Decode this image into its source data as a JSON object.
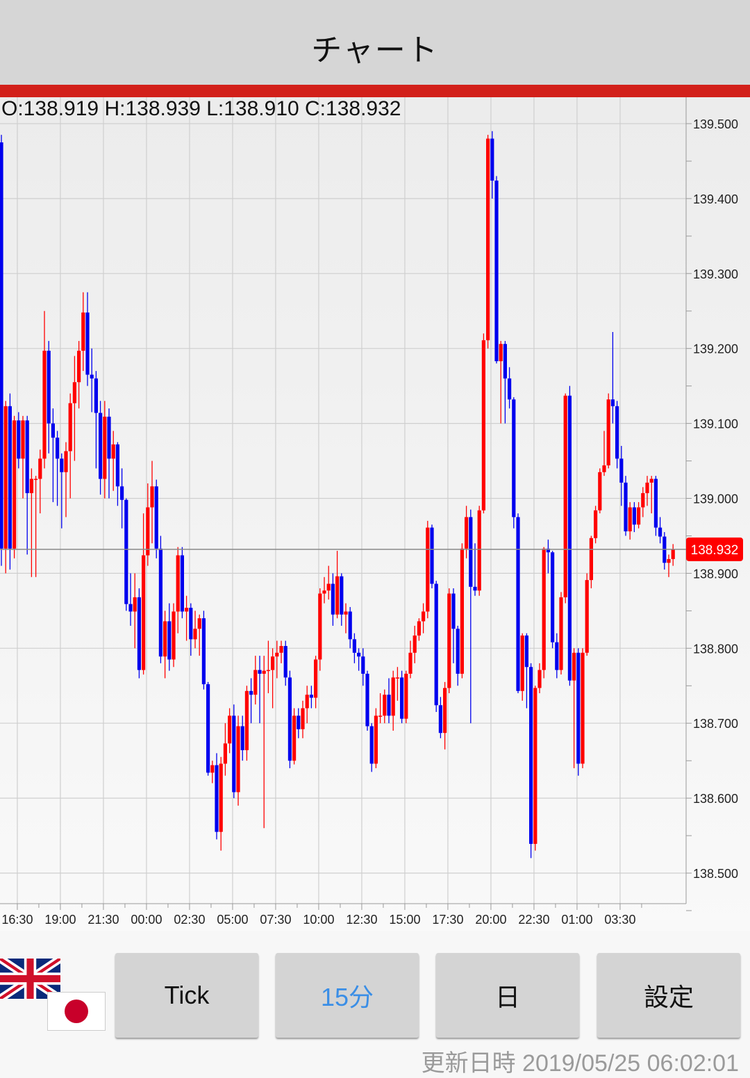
{
  "header": {
    "title": "チャート"
  },
  "ohlc_readout": "O:138.919 H:138.939 L:138.910 C:138.932",
  "colors": {
    "up": "#ff0000",
    "down": "#0000ee",
    "accent_bar": "#d2201a",
    "current_price_box": "#ff0000",
    "active_button_text": "#3a8ee6"
  },
  "buttons": [
    {
      "label": "Tick",
      "active": false
    },
    {
      "label": "15分",
      "active": true
    },
    {
      "label": "日",
      "active": false
    },
    {
      "label": "設定",
      "active": false
    }
  ],
  "flags": {
    "base": "uk-flag-icon",
    "quote": "japan-flag-icon"
  },
  "updated": "更新日時  2019/05/25 06:02:01",
  "chart_data": {
    "type": "candlestick",
    "interval": "15分",
    "ylim": [
      138.45,
      139.535
    ],
    "y_ticks": [
      "139.500",
      "139.400",
      "139.300",
      "139.200",
      "139.100",
      "139.000",
      "138.900",
      "138.800",
      "138.700",
      "138.600",
      "138.500"
    ],
    "x_ticks": [
      "16:30",
      "19:00",
      "21:30",
      "00:00",
      "02:30",
      "05:00",
      "07:30",
      "10:00",
      "12:30",
      "15:00",
      "17:30",
      "20:00",
      "22:30",
      "01:00",
      "03:30"
    ],
    "current_price": 138.932,
    "current_price_label": "138.932",
    "grid": true,
    "ohlc_format": "[open, high, low, close]",
    "candles": [
      [
        139.475,
        139.485,
        138.91,
        138.933
      ],
      [
        138.933,
        139.13,
        138.9,
        139.123
      ],
      [
        139.123,
        139.14,
        138.905,
        138.933
      ],
      [
        138.933,
        139.11,
        138.92,
        139.104
      ],
      [
        139.104,
        139.115,
        139.04,
        139.053
      ],
      [
        139.053,
        139.11,
        139.0,
        139.104
      ],
      [
        139.104,
        139.11,
        138.925,
        139.007
      ],
      [
        139.007,
        139.04,
        138.895,
        139.026
      ],
      [
        139.026,
        139.03,
        138.895,
        139.026
      ],
      [
        139.026,
        139.065,
        138.98,
        139.053
      ],
      [
        139.053,
        139.25,
        139.04,
        139.197
      ],
      [
        139.197,
        139.21,
        139.06,
        139.1
      ],
      [
        139.1,
        139.12,
        138.995,
        139.081
      ],
      [
        139.081,
        139.09,
        138.99,
        139.053
      ],
      [
        139.053,
        139.06,
        138.96,
        139.035
      ],
      [
        139.035,
        139.075,
        138.975,
        139.063
      ],
      [
        139.063,
        139.14,
        139.0,
        139.127
      ],
      [
        139.127,
        139.19,
        139.05,
        139.155
      ],
      [
        139.155,
        139.21,
        139.12,
        139.197
      ],
      [
        139.197,
        139.275,
        139.17,
        139.248
      ],
      [
        139.248,
        139.275,
        139.15,
        139.165
      ],
      [
        139.165,
        139.2,
        139.115,
        139.16
      ],
      [
        139.16,
        139.17,
        139.04,
        139.114
      ],
      [
        139.114,
        139.13,
        139.005,
        139.026
      ],
      [
        139.026,
        139.13,
        139.0,
        139.109
      ],
      [
        139.109,
        139.12,
        139.0,
        139.053
      ],
      [
        139.053,
        139.09,
        139.01,
        139.072
      ],
      [
        139.072,
        139.075,
        138.99,
        139.016
      ],
      [
        139.016,
        139.04,
        138.96,
        138.998
      ],
      [
        138.998,
        139.0,
        138.85,
        138.859
      ],
      [
        138.859,
        138.9,
        138.83,
        138.849
      ],
      [
        138.849,
        138.9,
        138.8,
        138.868
      ],
      [
        138.868,
        138.88,
        138.76,
        138.771
      ],
      [
        138.771,
        138.98,
        138.765,
        138.924
      ],
      [
        138.924,
        139.02,
        138.91,
        138.988
      ],
      [
        138.988,
        139.05,
        138.94,
        139.016
      ],
      [
        139.016,
        139.025,
        138.92,
        138.933
      ],
      [
        138.933,
        138.95,
        138.78,
        138.789
      ],
      [
        138.789,
        138.85,
        138.76,
        138.836
      ],
      [
        138.836,
        138.86,
        138.77,
        138.785
      ],
      [
        138.785,
        138.86,
        138.775,
        138.849
      ],
      [
        138.849,
        138.935,
        138.82,
        138.924
      ],
      [
        138.924,
        138.935,
        138.84,
        138.849
      ],
      [
        138.849,
        138.87,
        138.81,
        138.854
      ],
      [
        138.854,
        138.86,
        138.79,
        138.812
      ],
      [
        138.812,
        138.85,
        138.8,
        138.826
      ],
      [
        138.826,
        138.845,
        138.79,
        138.84
      ],
      [
        138.84,
        138.85,
        138.745,
        138.752
      ],
      [
        138.752,
        138.755,
        138.63,
        138.634
      ],
      [
        138.634,
        138.65,
        138.62,
        138.644
      ],
      [
        138.644,
        138.66,
        138.545,
        138.555
      ],
      [
        138.555,
        138.655,
        138.53,
        138.646
      ],
      [
        138.646,
        138.7,
        138.63,
        138.673
      ],
      [
        138.673,
        138.72,
        138.66,
        138.71
      ],
      [
        138.71,
        138.725,
        138.6,
        138.608
      ],
      [
        138.608,
        138.71,
        138.59,
        138.696
      ],
      [
        138.696,
        138.71,
        138.65,
        138.664
      ],
      [
        138.664,
        138.75,
        138.65,
        138.743
      ],
      [
        138.743,
        138.76,
        138.7,
        138.738
      ],
      [
        138.738,
        138.79,
        138.725,
        138.771
      ],
      [
        138.771,
        138.79,
        138.7,
        138.766
      ],
      [
        138.766,
        138.79,
        138.56,
        138.77
      ],
      [
        138.77,
        138.81,
        138.74,
        138.771
      ],
      [
        138.771,
        138.8,
        138.72,
        138.789
      ],
      [
        138.789,
        138.81,
        138.76,
        138.794
      ],
      [
        138.794,
        138.81,
        138.78,
        138.803
      ],
      [
        138.803,
        138.81,
        138.75,
        138.761
      ],
      [
        138.761,
        138.77,
        138.64,
        138.65
      ],
      [
        138.65,
        138.72,
        138.645,
        138.71
      ],
      [
        138.71,
        138.72,
        138.68,
        138.692
      ],
      [
        138.692,
        138.73,
        138.68,
        138.72
      ],
      [
        138.72,
        138.75,
        138.7,
        138.738
      ],
      [
        138.738,
        138.75,
        138.72,
        138.734
      ],
      [
        138.734,
        138.79,
        138.72,
        138.785
      ],
      [
        138.785,
        138.88,
        138.77,
        138.873
      ],
      [
        138.873,
        138.895,
        138.86,
        138.877
      ],
      [
        138.877,
        138.91,
        138.865,
        138.886
      ],
      [
        138.886,
        138.9,
        138.83,
        138.845
      ],
      [
        138.845,
        138.93,
        138.84,
        138.896
      ],
      [
        138.896,
        138.9,
        138.83,
        138.845
      ],
      [
        138.845,
        138.86,
        138.82,
        138.849
      ],
      [
        138.849,
        138.855,
        138.8,
        138.812
      ],
      [
        138.812,
        138.82,
        138.78,
        138.794
      ],
      [
        138.794,
        138.8,
        138.77,
        138.789
      ],
      [
        138.789,
        138.8,
        138.75,
        138.766
      ],
      [
        138.766,
        138.77,
        138.69,
        138.696
      ],
      [
        138.696,
        138.7,
        138.635,
        138.646
      ],
      [
        138.646,
        138.72,
        138.64,
        138.71
      ],
      [
        138.71,
        138.74,
        138.7,
        138.71
      ],
      [
        138.71,
        138.745,
        138.7,
        138.738
      ],
      [
        138.738,
        138.76,
        138.7,
        138.71
      ],
      [
        138.71,
        138.77,
        138.69,
        138.761
      ],
      [
        138.761,
        138.775,
        138.73,
        138.761
      ],
      [
        138.761,
        138.77,
        138.7,
        138.706
      ],
      [
        138.706,
        138.77,
        138.7,
        138.766
      ],
      [
        138.766,
        138.81,
        138.76,
        138.794
      ],
      [
        138.794,
        138.83,
        138.78,
        138.817
      ],
      [
        138.817,
        138.84,
        138.81,
        138.836
      ],
      [
        138.836,
        138.86,
        138.82,
        138.849
      ],
      [
        138.849,
        138.97,
        138.84,
        138.961
      ],
      [
        138.961,
        138.965,
        138.88,
        138.886
      ],
      [
        138.886,
        138.89,
        138.715,
        138.724
      ],
      [
        138.724,
        138.735,
        138.68,
        138.687
      ],
      [
        138.687,
        138.755,
        138.665,
        138.747
      ],
      [
        138.747,
        138.88,
        138.74,
        138.873
      ],
      [
        138.873,
        138.88,
        138.78,
        138.826
      ],
      [
        138.826,
        138.83,
        138.75,
        138.766
      ],
      [
        138.766,
        138.94,
        138.76,
        138.933
      ],
      [
        138.933,
        138.99,
        138.92,
        138.975
      ],
      [
        138.975,
        138.985,
        138.7,
        138.882
      ],
      [
        138.882,
        138.94,
        138.87,
        138.877
      ],
      [
        138.877,
        138.99,
        138.87,
        138.984
      ],
      [
        138.984,
        139.22,
        138.98,
        139.211
      ],
      [
        139.211,
        139.485,
        139.2,
        139.48
      ],
      [
        139.48,
        139.49,
        139.4,
        139.424
      ],
      [
        139.424,
        139.43,
        139.18,
        139.183
      ],
      [
        139.183,
        139.21,
        139.1,
        139.206
      ],
      [
        139.206,
        139.21,
        139.1,
        139.16
      ],
      [
        139.16,
        139.175,
        139.12,
        139.132
      ],
      [
        139.132,
        139.135,
        138.96,
        138.975
      ],
      [
        138.975,
        138.98,
        138.74,
        138.743
      ],
      [
        138.743,
        138.82,
        138.73,
        138.817
      ],
      [
        138.817,
        138.82,
        138.72,
        138.775
      ],
      [
        138.775,
        138.78,
        138.52,
        138.539
      ],
      [
        138.539,
        138.75,
        138.53,
        138.747
      ],
      [
        138.747,
        138.78,
        138.74,
        138.771
      ],
      [
        138.771,
        138.935,
        138.76,
        138.933
      ],
      [
        138.933,
        138.945,
        138.9,
        138.928
      ],
      [
        138.928,
        138.93,
        138.8,
        138.808
      ],
      [
        138.808,
        138.82,
        138.76,
        138.771
      ],
      [
        138.771,
        138.875,
        138.765,
        138.868
      ],
      [
        138.868,
        139.14,
        138.86,
        139.137
      ],
      [
        139.137,
        139.15,
        138.75,
        138.757
      ],
      [
        138.757,
        138.8,
        138.64,
        138.794
      ],
      [
        138.794,
        138.8,
        138.63,
        138.646
      ],
      [
        138.646,
        138.8,
        138.64,
        138.794
      ],
      [
        138.794,
        138.9,
        138.79,
        138.891
      ],
      [
        138.891,
        138.95,
        138.88,
        138.947
      ],
      [
        138.947,
        138.99,
        138.94,
        138.984
      ],
      [
        138.984,
        139.04,
        138.98,
        139.035
      ],
      [
        139.035,
        139.09,
        139.03,
        139.044
      ],
      [
        139.044,
        139.14,
        139.04,
        139.132
      ],
      [
        139.132,
        139.222,
        139.1,
        139.123
      ],
      [
        139.123,
        139.13,
        139.04,
        139.053
      ],
      [
        139.053,
        139.07,
        138.99,
        139.021
      ],
      [
        139.021,
        139.03,
        138.95,
        138.956
      ],
      [
        138.956,
        138.995,
        138.945,
        138.988
      ],
      [
        138.988,
        138.995,
        138.955,
        138.965
      ],
      [
        138.965,
        138.995,
        138.96,
        138.988
      ],
      [
        138.988,
        139.015,
        138.975,
        139.007
      ],
      [
        139.007,
        139.03,
        138.99,
        139.021
      ],
      [
        139.021,
        139.03,
        138.98,
        139.026
      ],
      [
        139.026,
        139.03,
        138.95,
        138.961
      ],
      [
        138.961,
        138.975,
        138.94,
        138.949
      ],
      [
        138.949,
        138.955,
        138.905,
        138.914
      ],
      [
        138.914,
        138.925,
        138.895,
        138.919
      ],
      [
        138.919,
        138.939,
        138.91,
        138.932
      ]
    ]
  }
}
